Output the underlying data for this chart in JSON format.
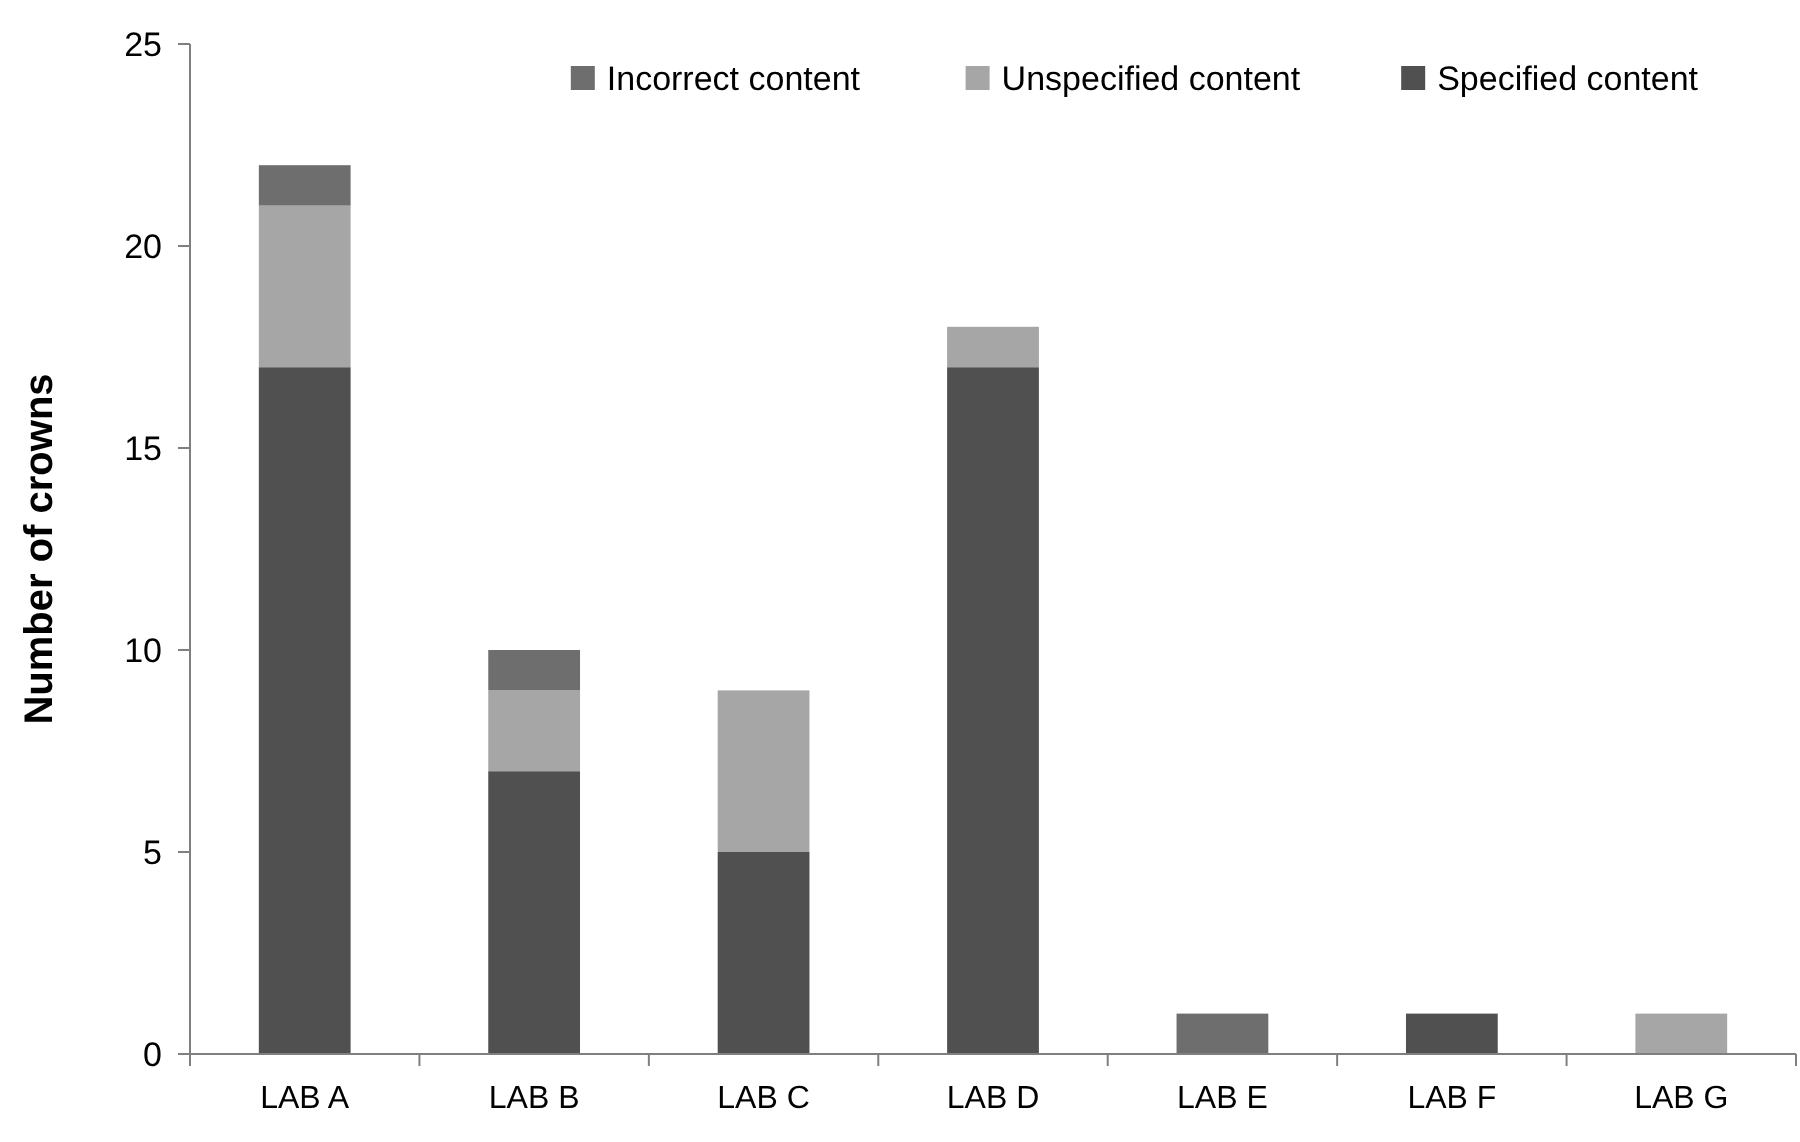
{
  "chart_data": {
    "type": "bar",
    "stacked": true,
    "ylabel": "Number of crowns",
    "categories": [
      "LAB A",
      "LAB B",
      "LAB C",
      "LAB D",
      "LAB E",
      "LAB F",
      "LAB G"
    ],
    "series": [
      {
        "name": "Specified content",
        "color": "#505050",
        "values": [
          17,
          7,
          5,
          17,
          0,
          1,
          0
        ]
      },
      {
        "name": "Unspecified content",
        "color": "#a6a6a6",
        "values": [
          4,
          2,
          4,
          1,
          0,
          0,
          1
        ]
      },
      {
        "name": "Incorrect content",
        "color": "#6e6e6e",
        "values": [
          1,
          1,
          0,
          0,
          1,
          0,
          0
        ]
      }
    ],
    "ylim": [
      0,
      25
    ],
    "yticks": [
      0,
      5,
      10,
      15,
      20,
      25
    ],
    "grid": false,
    "legend": "top right"
  }
}
